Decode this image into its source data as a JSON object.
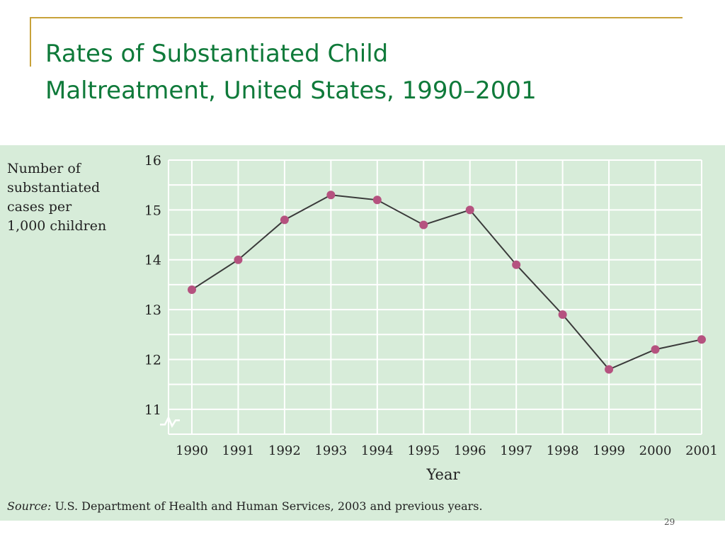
{
  "slide": {
    "title_line1": "Rates of Substantiated Child",
    "title_line2": "Maltreatment, United States, 1990–2001",
    "page_number": "29"
  },
  "source": {
    "label": "Source:",
    "text": " U.S. Department of Health and Human Services, 2003 and previous years."
  },
  "chart_data": {
    "type": "line",
    "ylabel_lines": [
      "Number of",
      "substantiated",
      "cases per",
      "1,000 children"
    ],
    "xlabel": "Year",
    "categories": [
      "1990",
      "1991",
      "1992",
      "1993",
      "1994",
      "1995",
      "1996",
      "1997",
      "1998",
      "1999",
      "2000",
      "2001"
    ],
    "values": [
      13.4,
      14.0,
      14.8,
      15.3,
      15.2,
      14.7,
      15.0,
      13.9,
      12.9,
      11.8,
      12.2,
      12.4
    ],
    "yticks": [
      11,
      12,
      13,
      14,
      15,
      16
    ],
    "ylim": [
      10.5,
      16
    ],
    "axis_break": true,
    "grid": true,
    "colors": {
      "background": "#d7ecd9",
      "grid": "#ffffff",
      "line": "#3a3a3a",
      "marker": "#b5527f"
    }
  }
}
